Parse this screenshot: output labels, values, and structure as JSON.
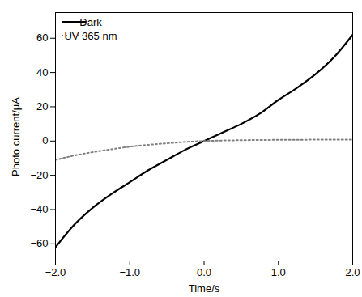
{
  "chart_data": {
    "type": "line",
    "x_label": "Time/s",
    "y_label": "Photo current/μA",
    "x": [
      -2,
      -1.75,
      -1.5,
      -1.25,
      -1,
      -0.75,
      -0.5,
      -0.25,
      0,
      0.25,
      0.5,
      0.75,
      1,
      1.25,
      1.5,
      1.75,
      2
    ],
    "series": [
      {
        "name": "Dark",
        "color": "#000000",
        "line_style": "solid",
        "values": [
          -62,
          -49,
          -39,
          -31,
          -24,
          -17,
          -11,
          -5,
          0,
          5,
          10,
          16,
          24,
          31,
          39,
          49,
          62
        ]
      },
      {
        "name": "UV 365 nm",
        "color": "#808080",
        "line_style": "dotted",
        "values": [
          -11,
          -8.5,
          -6.5,
          -4.8,
          -3.3,
          -2.2,
          -1.3,
          -0.5,
          0,
          0.3,
          0.5,
          0.6,
          0.7,
          0.75,
          0.8,
          0.8,
          0.8
        ]
      }
    ],
    "xlim": [
      -2,
      2
    ],
    "xticks": [
      -2,
      -1,
      0,
      1,
      2
    ],
    "ylim": [
      -70,
      75
    ],
    "yticks": [
      -60,
      -40,
      -20,
      0,
      20,
      40,
      60
    ],
    "grid": false,
    "legend": "upper left"
  }
}
